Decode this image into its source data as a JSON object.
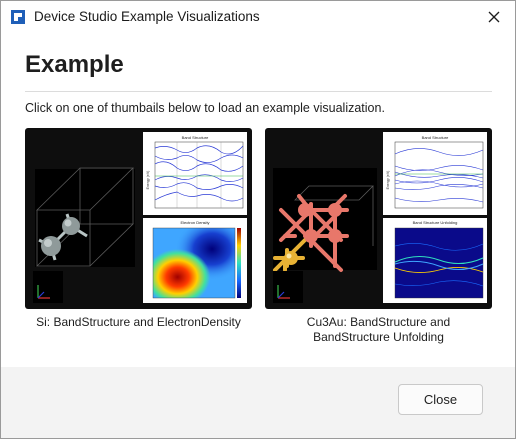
{
  "window": {
    "title": "Device Studio Example Visualizations"
  },
  "main": {
    "heading": "Example",
    "instruction": "Click on one of thumbails below to load an example visualization.",
    "examples": [
      {
        "caption": "Si: BandStructure and ElectronDensity",
        "plots": [
          "Band Structure",
          "Electron Density"
        ],
        "ylabel": "Energy (eV)"
      },
      {
        "caption_line1": "Cu3Au: BandStructure and",
        "caption_line2": "BandStructure Unfolding",
        "plots": [
          "Band Structure",
          "Band Structure Unfolding"
        ],
        "ylabel": "Energy (eV)"
      }
    ]
  },
  "footer": {
    "close_label": "Close"
  },
  "colors": {
    "accent": "#1f5fb8",
    "thumb_bg": "#0e0e0e",
    "band_line": "#2b3bd6",
    "fermi_line": "#38b84a",
    "si_atom": "#8f9a9a",
    "cu_atom": "#e8776a",
    "au_atom": "#e8b234"
  },
  "icons": {
    "app": "device-studio-logo-icon",
    "close": "close-icon"
  }
}
